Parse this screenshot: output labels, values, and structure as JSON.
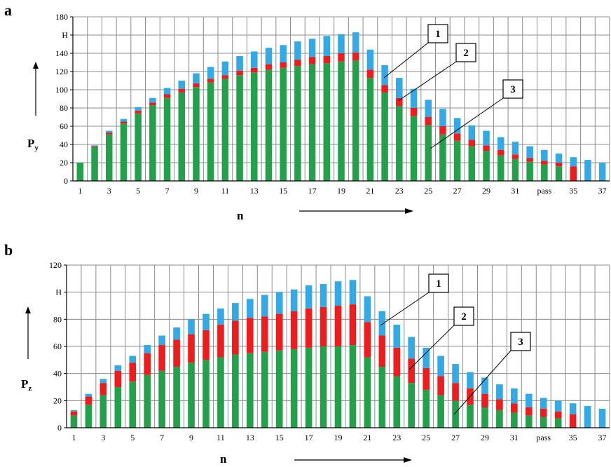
{
  "colors": {
    "series_1": "#33a9e6",
    "series_2": "#ee1c1c",
    "series_3": "#22a14a"
  },
  "chart_data": [
    {
      "panel": "a",
      "type": "bar",
      "stacked": true,
      "ylabel_main": "P",
      "ylabel_sub": "y",
      "xlabel": "n",
      "ylim": [
        0,
        180
      ],
      "y_ticks": [
        "0",
        "20",
        "40",
        "60",
        "80",
        "100",
        "120",
        "140",
        "H",
        "180"
      ],
      "x_tick_labels": [
        "1",
        "",
        "3",
        "",
        "5",
        "",
        "7",
        "",
        "9",
        "",
        "11",
        "",
        "13",
        "",
        "15",
        "",
        "17",
        "",
        "19",
        "",
        "21",
        "",
        "23",
        "",
        "25",
        "",
        "27",
        "",
        "29",
        "",
        "31",
        "",
        "pass",
        "",
        "35",
        "",
        "37"
      ],
      "callouts": [
        "1",
        "2",
        "3"
      ],
      "series_order": [
        "3",
        "2",
        "1"
      ],
      "series": [
        {
          "name": "3",
          "values": [
            20,
            37,
            51,
            63,
            74,
            83,
            91,
            97,
            103,
            108,
            112,
            116,
            119,
            122,
            124,
            126,
            128,
            129,
            131,
            132,
            113,
            97,
            82,
            71,
            61,
            51,
            44,
            38,
            33,
            28,
            24,
            21,
            18,
            16,
            0,
            0,
            0
          ]
        },
        {
          "name": "2",
          "values": [
            0,
            1,
            2,
            2,
            3,
            3,
            4,
            4,
            4,
            4,
            4,
            5,
            5,
            6,
            6,
            7,
            8,
            8,
            9,
            9,
            9,
            8,
            9,
            9,
            9,
            9,
            8,
            7,
            6,
            6,
            5,
            4,
            4,
            4,
            16,
            0,
            0
          ]
        },
        {
          "name": "1",
          "values": [
            0,
            1,
            2,
            3,
            4,
            5,
            7,
            9,
            11,
            13,
            15,
            16,
            18,
            18,
            19,
            20,
            20,
            22,
            21,
            22,
            22,
            22,
            22,
            21,
            19,
            19,
            17,
            16,
            16,
            14,
            14,
            13,
            12,
            10,
            10,
            23,
            20
          ]
        }
      ]
    },
    {
      "panel": "b",
      "type": "bar",
      "stacked": true,
      "ylabel_main": "P",
      "ylabel_sub": "z",
      "xlabel": "n",
      "ylim": [
        0,
        120
      ],
      "y_ticks": [
        "0",
        "20",
        "40",
        "60",
        "80",
        "H",
        "120"
      ],
      "x_tick_labels": [
        "1",
        "",
        "3",
        "",
        "5",
        "",
        "7",
        "",
        "9",
        "",
        "11",
        "",
        "13",
        "",
        "15",
        "",
        "17",
        "",
        "19",
        "",
        "21",
        "",
        "23",
        "",
        "25",
        "",
        "27",
        "",
        "29",
        "",
        "31",
        "",
        "pass",
        "",
        "35",
        "",
        "37"
      ],
      "callouts": [
        "1",
        "2",
        "3"
      ],
      "series_order": [
        "3",
        "2",
        "1"
      ],
      "series": [
        {
          "name": "3",
          "values": [
            9,
            17,
            24,
            30,
            34,
            39,
            42,
            45,
            48,
            50,
            52,
            54,
            55,
            56,
            57,
            58,
            59,
            60,
            60,
            61,
            52,
            45,
            38,
            33,
            28,
            24,
            20,
            17,
            15,
            13,
            11,
            9,
            8,
            7,
            0,
            0,
            0
          ]
        },
        {
          "name": "2",
          "values": [
            3,
            6,
            9,
            12,
            14,
            16,
            19,
            20,
            21,
            22,
            24,
            25,
            26,
            26,
            27,
            28,
            29,
            29,
            30,
            30,
            26,
            23,
            21,
            18,
            16,
            14,
            13,
            12,
            10,
            8,
            7,
            6,
            6,
            5,
            10,
            0,
            0
          ]
        },
        {
          "name": "1",
          "values": [
            1,
            2,
            3,
            4,
            5,
            6,
            7,
            9,
            11,
            12,
            12,
            13,
            14,
            16,
            16,
            16,
            17,
            17,
            18,
            18,
            19,
            18,
            17,
            16,
            15,
            15,
            14,
            12,
            12,
            11,
            11,
            10,
            8,
            8,
            8,
            16,
            14
          ]
        }
      ]
    }
  ]
}
